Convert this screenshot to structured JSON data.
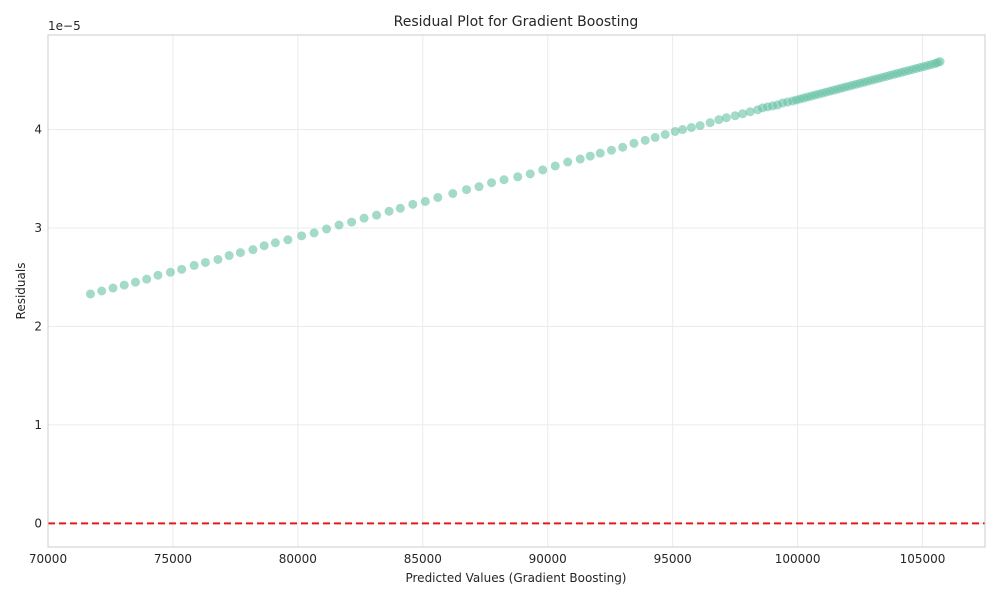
{
  "chart_data": {
    "type": "scatter",
    "title": "Residual Plot for Gradient Boosting",
    "xlabel": "Predicted Values (Gradient Boosting)",
    "ylabel": "Residuals",
    "y_offset_label": "1e−5",
    "xlim": [
      70000,
      107500
    ],
    "ylim": [
      -0.24,
      4.96
    ],
    "x_ticks": [
      70000,
      75000,
      80000,
      85000,
      90000,
      95000,
      100000,
      105000
    ],
    "x_tick_labels": [
      "70000",
      "75000",
      "80000",
      "85000",
      "90000",
      "95000",
      "100000",
      "105000"
    ],
    "y_ticks": [
      0,
      1,
      2,
      3,
      4
    ],
    "y_tick_labels": [
      "0",
      "1",
      "2",
      "3",
      "4"
    ],
    "grid": true,
    "reference_line": {
      "y": 0,
      "color": "#e41a1c",
      "style": "dashed"
    },
    "series": [
      {
        "color": "#66c2a5",
        "x": [
          71700,
          72150,
          72600,
          73050,
          73500,
          73950,
          74400,
          74900,
          75350,
          75850,
          76300,
          76800,
          77250,
          77700,
          78200,
          78650,
          79100,
          79600,
          80150,
          80650,
          81150,
          81650,
          82150,
          82650,
          83150,
          83650,
          84100,
          84600,
          85100,
          85600,
          86200,
          86750,
          87250,
          87750,
          88250,
          88800,
          89300,
          89800,
          90300,
          90800,
          91300,
          91700,
          92100,
          92550,
          93000,
          93450,
          93900,
          94300,
          94700,
          95100,
          95400,
          95750,
          96100,
          96500,
          96850,
          97150,
          97500,
          97800,
          98100,
          98400,
          98600,
          98800,
          99000,
          99200,
          99400,
          99600,
          99800,
          99950,
          100100,
          100250,
          100400,
          100550,
          100700,
          100850,
          101000,
          101150,
          101300,
          101450,
          101600,
          101750,
          101900,
          102050,
          102200,
          102350,
          102500,
          102650,
          102800,
          102950,
          103100,
          103250,
          103400,
          103550,
          103700,
          103850,
          104000,
          104150,
          104300,
          104450,
          104600,
          104750,
          104900,
          105050,
          105200,
          105350,
          105500,
          105600,
          105700
        ],
        "y": [
          2.33,
          2.36,
          2.39,
          2.42,
          2.45,
          2.48,
          2.52,
          2.55,
          2.58,
          2.62,
          2.65,
          2.68,
          2.72,
          2.75,
          2.78,
          2.82,
          2.85,
          2.88,
          2.92,
          2.95,
          2.99,
          3.03,
          3.06,
          3.1,
          3.13,
          3.17,
          3.2,
          3.24,
          3.27,
          3.31,
          3.35,
          3.39,
          3.42,
          3.46,
          3.49,
          3.52,
          3.55,
          3.59,
          3.63,
          3.67,
          3.7,
          3.73,
          3.76,
          3.79,
          3.82,
          3.86,
          3.89,
          3.92,
          3.95,
          3.98,
          4.0,
          4.02,
          4.04,
          4.07,
          4.1,
          4.12,
          4.14,
          4.16,
          4.18,
          4.2,
          4.22,
          4.23,
          4.24,
          4.25,
          4.27,
          4.28,
          4.29,
          4.3,
          4.31,
          4.32,
          4.33,
          4.34,
          4.35,
          4.36,
          4.37,
          4.38,
          4.39,
          4.4,
          4.41,
          4.42,
          4.43,
          4.44,
          4.45,
          4.46,
          4.47,
          4.48,
          4.49,
          4.5,
          4.51,
          4.52,
          4.53,
          4.54,
          4.55,
          4.56,
          4.57,
          4.58,
          4.59,
          4.6,
          4.61,
          4.62,
          4.63,
          4.64,
          4.65,
          4.66,
          4.67,
          4.68,
          4.69
        ]
      }
    ]
  }
}
